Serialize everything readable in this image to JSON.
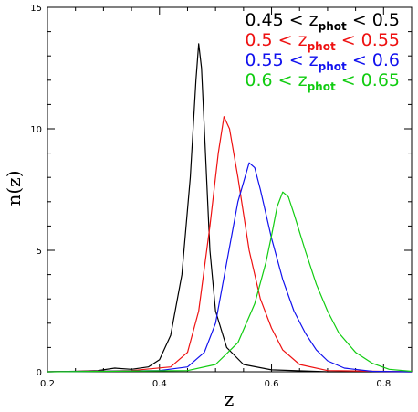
{
  "chart_data": {
    "type": "line",
    "xlabel": "z",
    "ylabel": "n(z)",
    "xlim": [
      0.2,
      0.85
    ],
    "ylim": [
      0,
      15
    ],
    "x_ticks": [
      "0.2",
      "0.4",
      "0.6",
      "0.8"
    ],
    "y_ticks": [
      "0",
      "5",
      "10",
      "15"
    ],
    "x_tick_values": [
      0.2,
      0.4,
      0.6,
      0.8
    ],
    "y_tick_values": [
      0,
      5,
      10,
      15
    ],
    "legend_position": "top-right",
    "series": [
      {
        "name": "0.45 < z_phot < 0.5",
        "legend": {
          "left": "0.45 < z",
          "sub": "phot",
          "right": " < 0.5"
        },
        "color": "#000000",
        "points": [
          [
            0.2,
            0.0
          ],
          [
            0.25,
            0.02
          ],
          [
            0.29,
            0.05
          ],
          [
            0.32,
            0.15
          ],
          [
            0.35,
            0.1
          ],
          [
            0.38,
            0.2
          ],
          [
            0.4,
            0.5
          ],
          [
            0.42,
            1.5
          ],
          [
            0.44,
            4.0
          ],
          [
            0.455,
            8.0
          ],
          [
            0.465,
            12.0
          ],
          [
            0.47,
            13.5
          ],
          [
            0.475,
            12.5
          ],
          [
            0.48,
            10.0
          ],
          [
            0.49,
            5.0
          ],
          [
            0.5,
            2.5
          ],
          [
            0.52,
            1.0
          ],
          [
            0.55,
            0.3
          ],
          [
            0.6,
            0.08
          ],
          [
            0.7,
            0.0
          ],
          [
            0.85,
            0.0
          ]
        ]
      },
      {
        "name": "0.5 < z_phot < 0.55",
        "legend": {
          "left": "0.5 < z",
          "sub": "phot",
          "right": " < 0.55"
        },
        "color": "#ee1111",
        "points": [
          [
            0.2,
            0.0
          ],
          [
            0.35,
            0.05
          ],
          [
            0.42,
            0.2
          ],
          [
            0.45,
            0.8
          ],
          [
            0.47,
            2.5
          ],
          [
            0.49,
            6.0
          ],
          [
            0.505,
            9.0
          ],
          [
            0.515,
            10.5
          ],
          [
            0.525,
            10.0
          ],
          [
            0.54,
            8.0
          ],
          [
            0.56,
            5.0
          ],
          [
            0.58,
            3.0
          ],
          [
            0.6,
            1.8
          ],
          [
            0.62,
            0.9
          ],
          [
            0.65,
            0.3
          ],
          [
            0.7,
            0.05
          ],
          [
            0.85,
            0.0
          ]
        ]
      },
      {
        "name": "0.55 < z_phot < 0.6",
        "legend": {
          "left": "0.55 < z",
          "sub": "phot",
          "right": " < 0.6"
        },
        "color": "#1111ee",
        "points": [
          [
            0.2,
            0.0
          ],
          [
            0.4,
            0.05
          ],
          [
            0.45,
            0.2
          ],
          [
            0.48,
            0.8
          ],
          [
            0.5,
            2.0
          ],
          [
            0.52,
            4.5
          ],
          [
            0.54,
            7.0
          ],
          [
            0.56,
            8.6
          ],
          [
            0.57,
            8.4
          ],
          [
            0.58,
            7.5
          ],
          [
            0.6,
            5.5
          ],
          [
            0.62,
            3.8
          ],
          [
            0.64,
            2.5
          ],
          [
            0.66,
            1.6
          ],
          [
            0.68,
            0.9
          ],
          [
            0.7,
            0.45
          ],
          [
            0.73,
            0.15
          ],
          [
            0.78,
            0.02
          ],
          [
            0.85,
            0.0
          ]
        ]
      },
      {
        "name": "0.6 < z_phot < 0.65",
        "legend": {
          "left": "0.6 < z",
          "sub": "phot",
          "right": " < 0.65"
        },
        "color": "#11cc11",
        "points": [
          [
            0.2,
            0.0
          ],
          [
            0.45,
            0.05
          ],
          [
            0.5,
            0.3
          ],
          [
            0.54,
            1.2
          ],
          [
            0.57,
            2.8
          ],
          [
            0.59,
            4.5
          ],
          [
            0.6,
            5.6
          ],
          [
            0.61,
            6.8
          ],
          [
            0.62,
            7.4
          ],
          [
            0.63,
            7.2
          ],
          [
            0.64,
            6.5
          ],
          [
            0.66,
            5.0
          ],
          [
            0.68,
            3.6
          ],
          [
            0.7,
            2.5
          ],
          [
            0.72,
            1.6
          ],
          [
            0.75,
            0.8
          ],
          [
            0.78,
            0.35
          ],
          [
            0.81,
            0.1
          ],
          [
            0.85,
            0.02
          ]
        ]
      }
    ]
  }
}
